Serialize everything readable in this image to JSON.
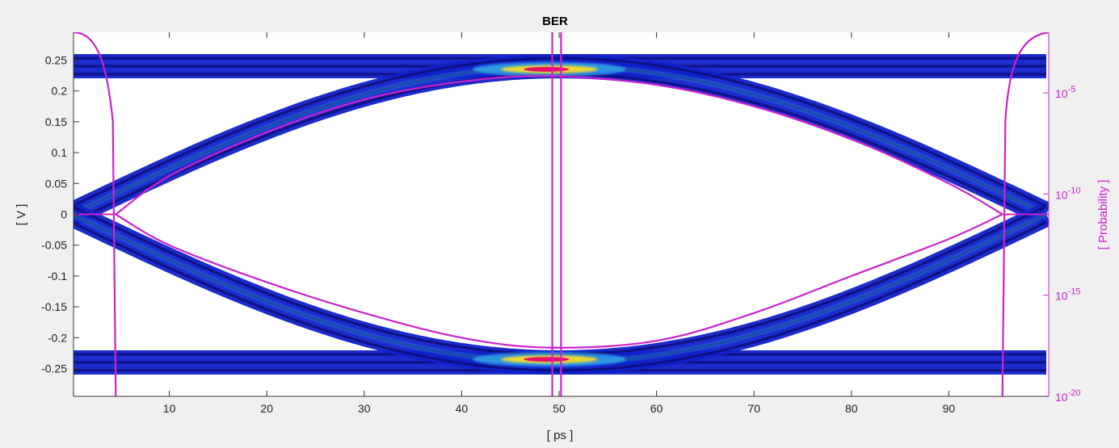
{
  "window": {
    "background": "#f0f0f0"
  },
  "chart_data": {
    "type": "eye-diagram",
    "title": "BER",
    "xlabel": "[ ps ]",
    "ylabel": "[ V ]",
    "y2label": "[ Probability ]",
    "xlim": [
      0,
      100
    ],
    "ylim": [
      -0.295,
      0.295
    ],
    "x_ticks": [
      10,
      20,
      30,
      40,
      50,
      60,
      70,
      80,
      90
    ],
    "y_ticks": [
      0.25,
      0.2,
      0.15,
      0.1,
      0.05,
      0,
      -0.05,
      -0.1,
      -0.15,
      -0.2,
      -0.25
    ],
    "y_tick_labels": [
      "0.25",
      "0.2",
      "0.15",
      "0.1",
      "0.05",
      "0",
      "-0.05",
      "-0.1",
      "-0.15",
      "-0.2",
      "-0.25"
    ],
    "y2_scale": "log",
    "y2_ticks": [
      {
        "base": "10",
        "exp": "-5",
        "value": 1e-05
      },
      {
        "base": "10",
        "exp": "-10",
        "value": 1e-10
      },
      {
        "base": "10",
        "exp": "-15",
        "value": 1e-15
      },
      {
        "base": "10",
        "exp": "-20",
        "value": 1e-20
      }
    ],
    "colors": {
      "ber_contour": "#cc22cc",
      "y2_axis": "#cc22cc",
      "density_low": "#1020c8",
      "density_mid": "#38b8f0",
      "density_high": "#ffe020",
      "density_peak": "#e8106a"
    },
    "eye_traces": {
      "rail_high_v": 0.24,
      "rail_low_v": -0.24,
      "crossing_v": 0,
      "crossing_left_ps": 0,
      "crossing_right_ps": 100,
      "eye_center_ps": 49,
      "line_spread_v": 0.013
    },
    "ber_contour": {
      "eye_top": [
        [
          4.5,
          0
        ],
        [
          10,
          0.062
        ],
        [
          20,
          0.133
        ],
        [
          30,
          0.186
        ],
        [
          40,
          0.215
        ],
        [
          49,
          0.224
        ],
        [
          60,
          0.21
        ],
        [
          70,
          0.175
        ],
        [
          80,
          0.122
        ],
        [
          90,
          0.05
        ],
        [
          95.5,
          0
        ]
      ],
      "eye_bottom": [
        [
          4.5,
          0
        ],
        [
          10,
          -0.05
        ],
        [
          20,
          -0.11
        ],
        [
          30,
          -0.16
        ],
        [
          40,
          -0.2
        ],
        [
          49,
          -0.216
        ],
        [
          60,
          -0.205
        ],
        [
          70,
          -0.16
        ],
        [
          80,
          -0.1
        ],
        [
          90,
          -0.04
        ],
        [
          95.5,
          0
        ]
      ],
      "vertical_ps": [
        4.5,
        49.3,
        50.2,
        95.5
      ]
    }
  }
}
